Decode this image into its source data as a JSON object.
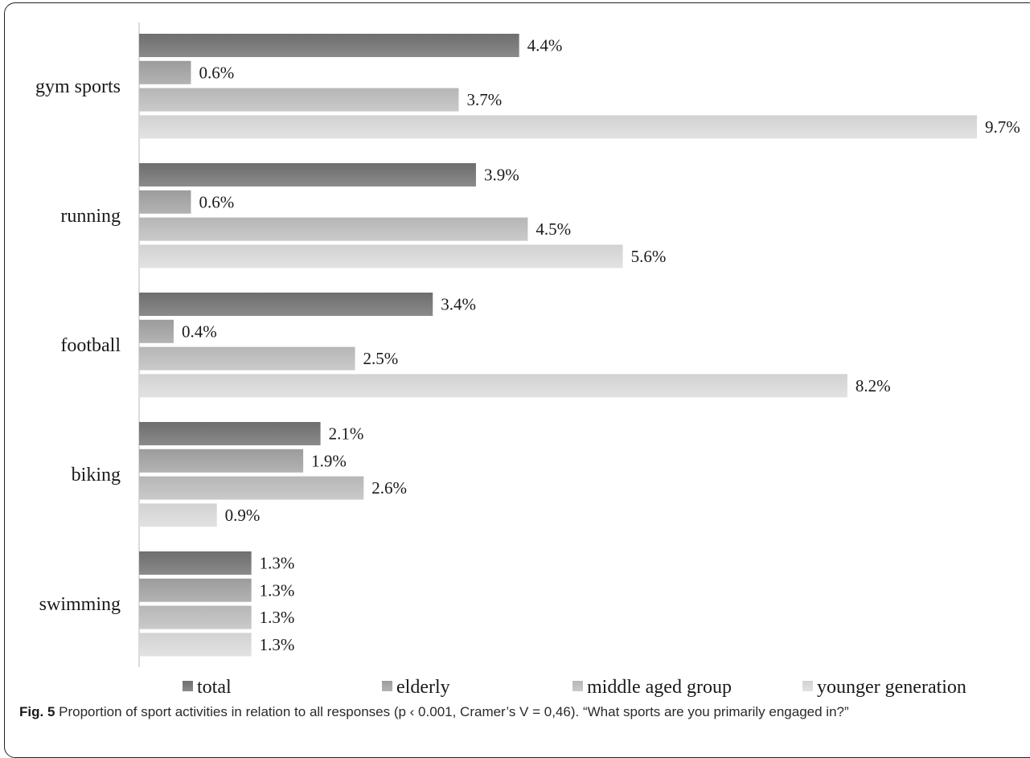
{
  "chart_data": {
    "type": "bar",
    "orientation": "horizontal",
    "categories": [
      "gym sports",
      "running",
      "football",
      "biking",
      "swimming"
    ],
    "series": [
      {
        "name": "total",
        "values": [
          4.4,
          3.9,
          3.4,
          2.1,
          1.3
        ],
        "color": "#6e6e6e",
        "color_light": "#8a8a8a"
      },
      {
        "name": "elderly",
        "values": [
          0.6,
          0.6,
          0.4,
          1.9,
          1.3
        ],
        "color": "#9c9c9c",
        "color_light": "#b3b3b3"
      },
      {
        "name": "middle aged group",
        "values": [
          3.7,
          4.5,
          2.5,
          2.6,
          1.3
        ],
        "color": "#b6b6b6",
        "color_light": "#cacaca"
      },
      {
        "name": "younger generation",
        "values": [
          9.7,
          5.6,
          8.2,
          0.9,
          1.3
        ],
        "color": "#d2d2d2",
        "color_light": "#e2e2e2"
      }
    ],
    "value_labels": [
      [
        "4.4%",
        "3.9%",
        "3.4%",
        "2.1%",
        "1.3%"
      ],
      [
        "0.6%",
        "0.6%",
        "0.4%",
        "1.9%",
        "1.3%"
      ],
      [
        "3.7%",
        "4.5%",
        "2.5%",
        "2.6%",
        "1.3%"
      ],
      [
        "9.7%",
        "5.6%",
        "8.2%",
        "0.9%",
        "1.3%"
      ]
    ],
    "xlim": [
      0,
      9.7
    ],
    "grid": false,
    "legend_position": "bottom"
  },
  "caption": {
    "label": "Fig. 5",
    "text": " Proportion of sport activities in relation to all responses (p ‹ 0.001, Cramer’s V = 0,46). “What sports are you primarily engaged in?”"
  }
}
